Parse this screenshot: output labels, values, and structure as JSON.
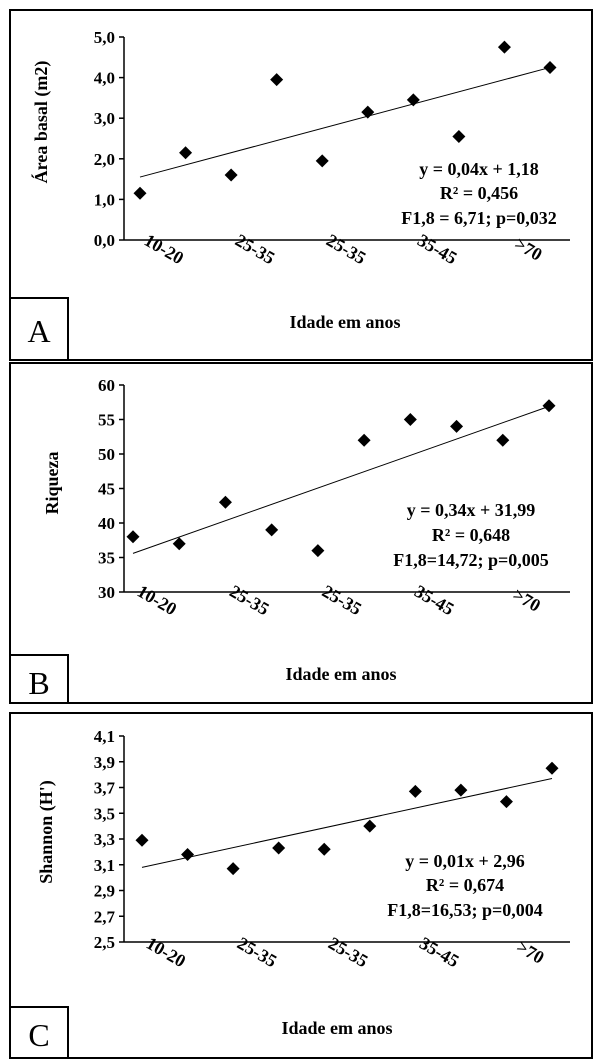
{
  "figure": {
    "panels": [
      {
        "letter": "A",
        "xlabel": "Idade em anos",
        "ylabel": "Área basal (m2)",
        "equation": "y = 0,04x + 1,18",
        "r2": "R² = 0,456",
        "stats": "F1,8 = 6,71; p=0,032"
      },
      {
        "letter": "B",
        "xlabel": "Idade em anos",
        "ylabel": "Riqueza",
        "equation": "y = 0,34x + 31,99",
        "r2": "R² = 0,648",
        "stats": "F1,8=14,72; p=0,005"
      },
      {
        "letter": "C",
        "xlabel": "Idade em anos",
        "ylabel": "Shannon (H')",
        "equation": "y = 0,01x + 2,96",
        "r2": "R² = 0,674",
        "stats": "F1,8=16,53; p=0,004"
      }
    ]
  },
  "chart_data": [
    {
      "type": "scatter",
      "xlabel": "Idade em anos",
      "ylabel": "Área basal (m2)",
      "x_tick_labels": [
        "10-20",
        "25-35",
        "25-35",
        "35-45",
        ">70"
      ],
      "y_tick_labels": [
        "0,0",
        "1,0",
        "2,0",
        "3,0",
        "4,0",
        "5,0"
      ],
      "ylim": [
        0,
        5
      ],
      "y_step": 1,
      "values": [
        1.15,
        2.15,
        1.6,
        3.95,
        1.95,
        3.15,
        3.45,
        2.55,
        4.75,
        4.25
      ],
      "trendline": [
        1.55,
        4.25
      ],
      "equation": "y = 0,04x + 1,18",
      "r2": "R² = 0,456",
      "stats": "F1,8 = 6,71; p=0,032",
      "marker": "diamond",
      "color": "#000000"
    },
    {
      "type": "scatter",
      "xlabel": "Idade em anos",
      "ylabel": "Riqueza",
      "x_tick_labels": [
        "10-20",
        "25-35",
        "25-35",
        "35-45",
        ">70"
      ],
      "y_tick_labels": [
        "30",
        "35",
        "40",
        "45",
        "50",
        "55",
        "60"
      ],
      "ylim": [
        30,
        60
      ],
      "y_step": 5,
      "values": [
        38,
        37,
        43,
        39,
        36,
        52,
        55,
        54,
        52,
        57
      ],
      "trendline": [
        35.6,
        56.9
      ],
      "equation": "y = 0,34x + 31,99",
      "r2": "R² = 0,648",
      "stats": "F1,8=14,72; p=0,005",
      "marker": "diamond",
      "color": "#000000"
    },
    {
      "type": "scatter",
      "xlabel": "Idade em anos",
      "ylabel": "Shannon (H')",
      "x_tick_labels": [
        "10-20",
        "25-35",
        "25-35",
        "35-45",
        ">70"
      ],
      "y_tick_labels": [
        "2,5",
        "2,7",
        "2,9",
        "3,1",
        "3,3",
        "3,5",
        "3,7",
        "3,9",
        "4,1"
      ],
      "ylim": [
        2.5,
        4.1
      ],
      "y_step": 0.2,
      "values": [
        3.29,
        3.18,
        3.07,
        3.23,
        3.22,
        3.4,
        3.67,
        3.68,
        3.59,
        3.85
      ],
      "trendline": [
        3.08,
        3.77
      ],
      "equation": "y = 0,01x + 2,96",
      "r2": "R² = 0,674",
      "stats": "F1,8=16,53; p=0,004",
      "marker": "diamond",
      "color": "#000000"
    }
  ]
}
